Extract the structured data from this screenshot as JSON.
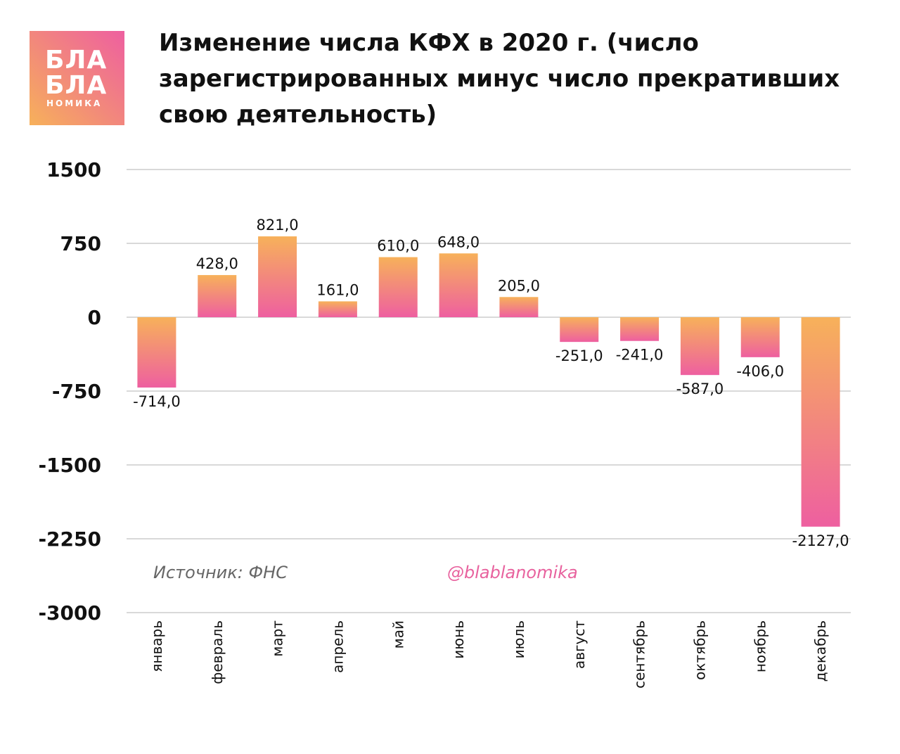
{
  "logo": {
    "line1": "БЛА",
    "line2": "БЛА",
    "line3": "НОМИКА"
  },
  "title": "Изменение числа КФХ в 2020 г. (число зарегистрированных минус число прекративших свою деятельность)",
  "source": "Источник: ФНС",
  "handle": "@blablanomika",
  "colors": {
    "bar_top": "#f7b15a",
    "bar_bottom": "#ee5fa0",
    "grid": "#d9d9d9",
    "handle": "#e8629e"
  },
  "chart_data": {
    "type": "bar",
    "title": "Изменение числа КФХ в 2020 г. (число зарегистрированных минус число прекративших свою деятельность)",
    "categories": [
      "январь",
      "февраль",
      "март",
      "апрель",
      "май",
      "июнь",
      "июль",
      "август",
      "сентябрь",
      "октябрь",
      "ноябрь",
      "декабрь"
    ],
    "values": [
      -714,
      428,
      821,
      161,
      610,
      648,
      205,
      -251,
      -241,
      -587,
      -406,
      -2127
    ],
    "value_labels": [
      "-714,0",
      "428,0",
      "821,0",
      "161,0",
      "610,0",
      "648,0",
      "205,0",
      "-251,0",
      "-241,0",
      "-587,0",
      "-406,0",
      "-2127,0"
    ],
    "yticks": [
      1500,
      750,
      0,
      -750,
      -1500,
      -2250,
      -3000
    ],
    "ylim": [
      -3000,
      1500
    ],
    "xlabel": "",
    "ylabel": "",
    "grid": true,
    "legend": false
  }
}
